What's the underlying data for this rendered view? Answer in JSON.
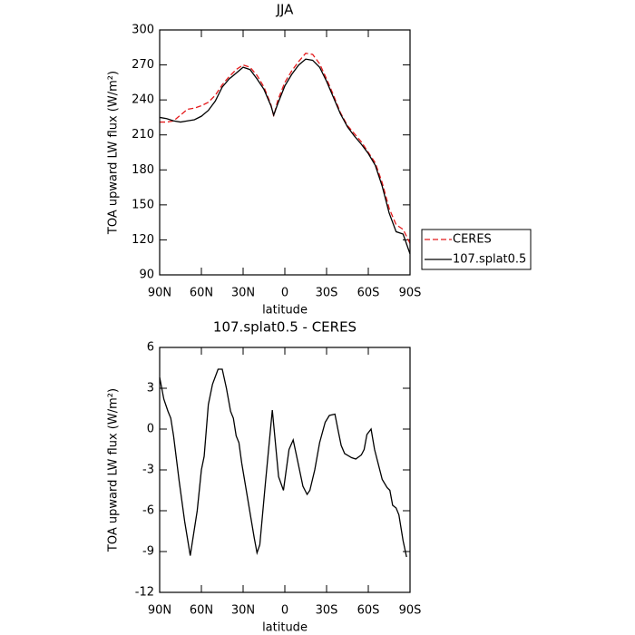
{
  "chart_data": [
    {
      "type": "line",
      "title": "JJA",
      "xlabel": "latitude",
      "ylabel": "TOA upward LW flux (W/m²)",
      "x": [
        90,
        85,
        80,
        75,
        70,
        65,
        60,
        55,
        50,
        45,
        40,
        35,
        30,
        25,
        20,
        15,
        10,
        8,
        5,
        0,
        -5,
        -10,
        -15,
        -20,
        -25,
        -30,
        -35,
        -40,
        -45,
        -50,
        -55,
        -60,
        -65,
        -70,
        -75,
        -80,
        -85,
        -90
      ],
      "series": [
        {
          "name": "CERES",
          "color": "#e41a1c",
          "dash": true,
          "values": [
            221,
            221,
            222,
            227,
            232,
            233,
            235,
            238,
            244,
            253,
            260,
            266,
            270,
            268,
            261,
            251,
            236,
            226,
            240,
            255,
            265,
            273,
            280,
            279,
            271,
            258,
            244,
            229,
            218,
            211,
            204,
            195,
            186,
            169,
            147,
            133,
            129,
            117
          ]
        },
        {
          "name": "107.splat0.5",
          "color": "#000000",
          "dash": false,
          "values": [
            225,
            224,
            222,
            221,
            222,
            223,
            226,
            231,
            239,
            251,
            258,
            263,
            268,
            266,
            258,
            249,
            235,
            227,
            237,
            252,
            262,
            270,
            275,
            274,
            268,
            256,
            242,
            228,
            217,
            209,
            202,
            194,
            184,
            166,
            143,
            127,
            125,
            108
          ]
        }
      ],
      "xlim": [
        90,
        -90
      ],
      "ylim": [
        90,
        300
      ],
      "xticks": [
        {
          "value": 90,
          "label": "90N"
        },
        {
          "value": 60,
          "label": "60N"
        },
        {
          "value": 30,
          "label": "30N"
        },
        0,
        {
          "value": -30,
          "label": "30S"
        },
        {
          "value": -60,
          "label": "60S"
        },
        {
          "value": -90,
          "label": "90S"
        }
      ],
      "yticks": [
        90,
        120,
        150,
        180,
        210,
        240,
        270,
        300
      ],
      "legend": "right"
    },
    {
      "type": "line",
      "title": "107.splat0.5 - CERES",
      "xlabel": "latitude",
      "ylabel": "TOA upward LW flux (W/m²)",
      "x": [
        90,
        87,
        84,
        82,
        80,
        76,
        72,
        68,
        63,
        60,
        58,
        55,
        52,
        48,
        45,
        42,
        39,
        37,
        35,
        33,
        31,
        22,
        20,
        18,
        14,
        9,
        4.5,
        1,
        -3,
        -6,
        -8.5,
        -13,
        -16,
        -18,
        -21.5,
        -25,
        -29,
        -32,
        -36,
        -38.5,
        -40.5,
        -43,
        -48,
        -51,
        -55,
        -57,
        -59,
        -62,
        -64.5,
        -70,
        -73.5,
        -75.5,
        -77.5,
        -80,
        -82,
        -85,
        -87.5
      ],
      "series": [
        {
          "name": "107.splat0.5 - CERES",
          "color": "#000000",
          "dash": false,
          "values": [
            3.8,
            2.2,
            1.3,
            0.8,
            -0.5,
            -3.8,
            -6.8,
            -9.3,
            -6,
            -3,
            -2,
            1.8,
            3.3,
            4.4,
            4.4,
            3,
            1.3,
            0.8,
            -0.5,
            -1,
            -2.5,
            -8,
            -9.1,
            -8.5,
            -4,
            1.4,
            -3.5,
            -4.5,
            -1.5,
            -0.8,
            -2,
            -4.2,
            -4.8,
            -4.5,
            -3,
            -1,
            0.5,
            1,
            1.1,
            -0.2,
            -1.2,
            -1.8,
            -2.1,
            -2.2,
            -1.9,
            -1.5,
            -0.4,
            0,
            -1.5,
            -3.7,
            -4.3,
            -4.5,
            -5.6,
            -5.8,
            -6.3,
            -8.2,
            -9.4
          ]
        }
      ],
      "xlim": [
        90,
        -90
      ],
      "ylim": [
        -12,
        6
      ],
      "xticks": [
        {
          "value": 90,
          "label": "90N"
        },
        {
          "value": 60,
          "label": "60N"
        },
        {
          "value": 30,
          "label": "30N"
        },
        0,
        {
          "value": -30,
          "label": "30S"
        },
        {
          "value": -60,
          "label": "60S"
        },
        {
          "value": -90,
          "label": "90S"
        }
      ],
      "yticks": [
        -12,
        -9,
        -6,
        -3,
        0,
        3,
        6
      ]
    }
  ]
}
